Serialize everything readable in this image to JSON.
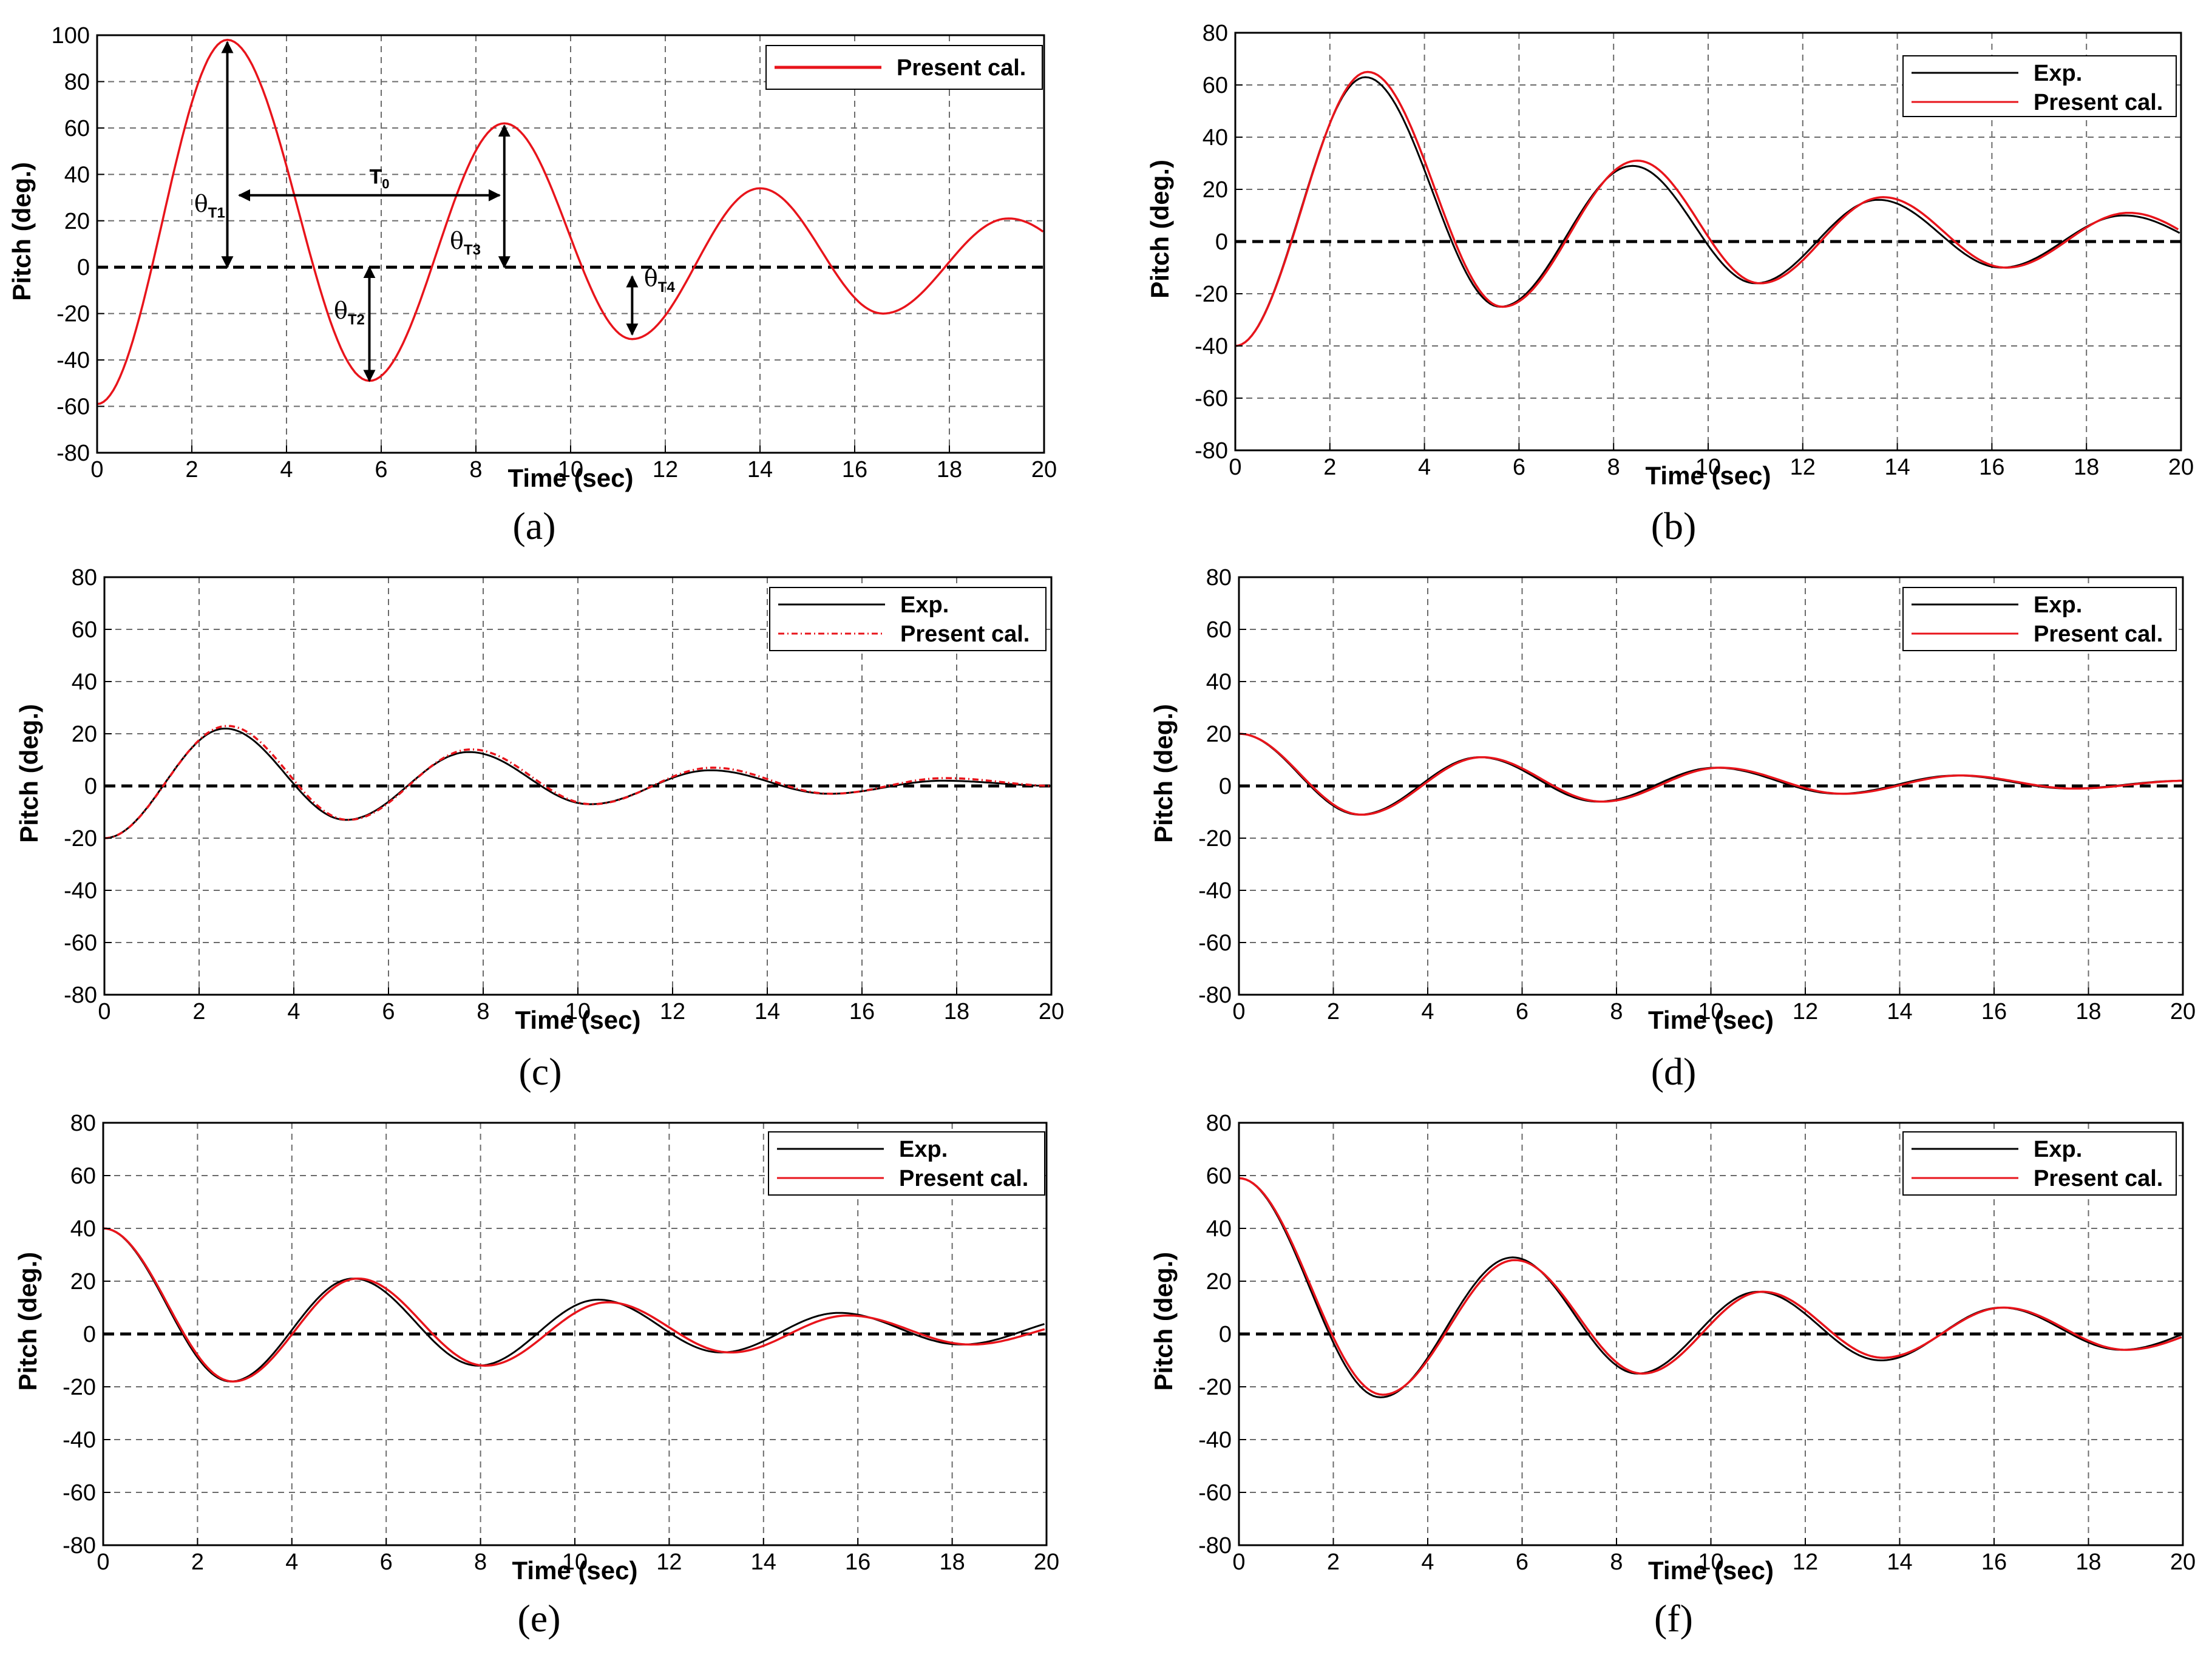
{
  "figure": {
    "description_panels": [
      "a",
      "b",
      "c",
      "d",
      "e",
      "f"
    ]
  },
  "colors": {
    "exp": "#000000",
    "cal": "#e8141b",
    "grid": "#6b6b6b",
    "zero": "#000000"
  },
  "chart_data": [
    {
      "id": "a",
      "label": "(a)",
      "type": "line",
      "xlabel": "Time (sec)",
      "ylabel": "Pitch (deg.)",
      "xlim": [
        0,
        20
      ],
      "ylim": [
        -80,
        100
      ],
      "xticks": [
        0,
        2,
        4,
        6,
        8,
        10,
        12,
        14,
        16,
        18,
        20
      ],
      "yticks": [
        -80,
        -60,
        -40,
        -20,
        0,
        20,
        40,
        60,
        80,
        100
      ],
      "legend": [
        "Present cal."
      ],
      "series": [
        {
          "name": "Present cal.",
          "style": "cal-solid",
          "x0": -59,
          "peaks": [
            [
              2.75,
              98
            ],
            [
              5.75,
              -49
            ],
            [
              8.6,
              62
            ],
            [
              11.3,
              -31
            ],
            [
              14.0,
              34
            ],
            [
              16.6,
              -20
            ],
            [
              19.25,
              21
            ]
          ],
          "x_end": 20,
          "y_end": 15
        }
      ],
      "annotations": {
        "theta_symbol": "θ",
        "theta_T1_sub": "T1",
        "theta_T2_sub": "T2",
        "theta_T3_sub": "T3",
        "theta_T4_sub": "T4",
        "T0": "T",
        "T0_sub": "0"
      }
    },
    {
      "id": "b",
      "label": "(b)",
      "type": "line",
      "xlabel": "Time (sec)",
      "ylabel": "Pitch (deg.)",
      "xlim": [
        0,
        20
      ],
      "ylim": [
        -80,
        80
      ],
      "xticks": [
        0,
        2,
        4,
        6,
        8,
        10,
        12,
        14,
        16,
        18,
        20
      ],
      "yticks": [
        -80,
        -60,
        -40,
        -20,
        0,
        20,
        40,
        60,
        80
      ],
      "legend": [
        "Exp.",
        "Present cal."
      ],
      "series": [
        {
          "name": "Exp.",
          "style": "exp",
          "x0": -40,
          "peaks": [
            [
              2.75,
              63
            ],
            [
              5.6,
              -25
            ],
            [
              8.4,
              29
            ],
            [
              11.0,
              -16
            ],
            [
              13.6,
              16
            ],
            [
              16.2,
              -10
            ],
            [
              18.8,
              10
            ]
          ],
          "x_end": 20,
          "y_end": 3
        },
        {
          "name": "Present cal.",
          "style": "cal-solid",
          "x0": -40,
          "peaks": [
            [
              2.8,
              65
            ],
            [
              5.65,
              -25
            ],
            [
              8.5,
              31
            ],
            [
              11.1,
              -16
            ],
            [
              13.7,
              17
            ],
            [
              16.3,
              -10
            ],
            [
              18.9,
              11
            ]
          ],
          "x_end": 20,
          "y_end": 4
        }
      ]
    },
    {
      "id": "c",
      "label": "(c)",
      "type": "line",
      "xlabel": "Time (sec)",
      "ylabel": "Pitch (deg.)",
      "xlim": [
        0,
        20
      ],
      "ylim": [
        -80,
        80
      ],
      "xticks": [
        0,
        2,
        4,
        6,
        8,
        10,
        12,
        14,
        16,
        18,
        20
      ],
      "yticks": [
        -80,
        -60,
        -40,
        -20,
        0,
        20,
        40,
        60,
        80
      ],
      "legend": [
        "Exp.",
        "Present cal."
      ],
      "series": [
        {
          "name": "Exp.",
          "style": "exp",
          "x0": -20,
          "peaks": [
            [
              2.55,
              22
            ],
            [
              5.1,
              -13
            ],
            [
              7.7,
              13
            ],
            [
              10.25,
              -7
            ],
            [
              12.8,
              6
            ],
            [
              15.3,
              -3
            ],
            [
              17.7,
              2
            ]
          ],
          "x_end": 20,
          "y_end": 0
        },
        {
          "name": "Present cal.",
          "style": "cal-dash",
          "x0": -20,
          "peaks": [
            [
              2.6,
              23
            ],
            [
              5.15,
              -13
            ],
            [
              7.75,
              14
            ],
            [
              10.3,
              -7
            ],
            [
              12.85,
              7
            ],
            [
              15.35,
              -3
            ],
            [
              17.75,
              3
            ]
          ],
          "x_end": 20,
          "y_end": 0
        }
      ]
    },
    {
      "id": "d",
      "label": "(d)",
      "type": "line",
      "xlabel": "Time (sec)",
      "ylabel": "Pitch (deg.)",
      "xlim": [
        0,
        20
      ],
      "ylim": [
        -80,
        80
      ],
      "xticks": [
        0,
        2,
        4,
        6,
        8,
        10,
        12,
        14,
        16,
        18,
        20
      ],
      "yticks": [
        -80,
        -60,
        -40,
        -20,
        0,
        20,
        40,
        60,
        80
      ],
      "legend": [
        "Exp.",
        "Present cal."
      ],
      "series": [
        {
          "name": "Exp.",
          "style": "exp",
          "x0": 20,
          "peaks": [
            [
              2.55,
              -11
            ],
            [
              5.1,
              11
            ],
            [
              7.6,
              -6
            ],
            [
              10.1,
              7
            ],
            [
              12.7,
              -3
            ],
            [
              15.2,
              4
            ],
            [
              17.6,
              -1
            ]
          ],
          "x_end": 20,
          "y_end": 2
        },
        {
          "name": "Present cal.",
          "style": "cal-solid",
          "x0": 20,
          "peaks": [
            [
              2.6,
              -11
            ],
            [
              5.15,
              11
            ],
            [
              7.7,
              -6
            ],
            [
              10.2,
              7
            ],
            [
              12.8,
              -3
            ],
            [
              15.3,
              4
            ],
            [
              17.7,
              -1
            ]
          ],
          "x_end": 20,
          "y_end": 2
        }
      ]
    },
    {
      "id": "e",
      "label": "(e)",
      "type": "line",
      "xlabel": "Time (sec)",
      "ylabel": "Pitch (deg.)",
      "xlim": [
        0,
        20
      ],
      "ylim": [
        -80,
        80
      ],
      "xticks": [
        0,
        2,
        4,
        6,
        8,
        10,
        12,
        14,
        16,
        18,
        20
      ],
      "yticks": [
        -80,
        -60,
        -40,
        -20,
        0,
        20,
        40,
        60,
        80
      ],
      "legend": [
        "Exp.",
        "Present cal."
      ],
      "series": [
        {
          "name": "Exp.",
          "style": "exp",
          "x0": 40,
          "peaks": [
            [
              2.7,
              -18
            ],
            [
              5.3,
              21
            ],
            [
              7.95,
              -12
            ],
            [
              10.5,
              13
            ],
            [
              13.1,
              -7
            ],
            [
              15.6,
              8
            ],
            [
              18.2,
              -4
            ]
          ],
          "x_end": 20,
          "y_end": 4
        },
        {
          "name": "Present cal.",
          "style": "cal-solid",
          "x0": 40,
          "peaks": [
            [
              2.75,
              -18
            ],
            [
              5.4,
              21
            ],
            [
              8.1,
              -12
            ],
            [
              10.7,
              12
            ],
            [
              13.3,
              -7
            ],
            [
              15.8,
              7
            ],
            [
              18.4,
              -4
            ]
          ],
          "x_end": 20,
          "y_end": 2
        }
      ]
    },
    {
      "id": "f",
      "label": "(f)",
      "type": "line",
      "xlabel": "Time (sec)",
      "ylabel": "Pitch (deg.)",
      "xlim": [
        0,
        20
      ],
      "ylim": [
        -80,
        80
      ],
      "xticks": [
        0,
        2,
        4,
        6,
        8,
        10,
        12,
        14,
        16,
        18,
        20
      ],
      "yticks": [
        -80,
        -60,
        -40,
        -20,
        0,
        20,
        40,
        60,
        80
      ],
      "legend": [
        "Exp.",
        "Present cal."
      ],
      "series": [
        {
          "name": "Exp.",
          "style": "exp",
          "x0": 59,
          "peaks": [
            [
              3.0,
              -24
            ],
            [
              5.8,
              29
            ],
            [
              8.45,
              -15
            ],
            [
              11.0,
              16
            ],
            [
              13.6,
              -10
            ],
            [
              16.15,
              10
            ],
            [
              18.7,
              -6
            ]
          ],
          "x_end": 20,
          "y_end": 0
        },
        {
          "name": "Present cal.",
          "style": "cal-solid",
          "x0": 59,
          "peaks": [
            [
              3.05,
              -23
            ],
            [
              5.85,
              28
            ],
            [
              8.55,
              -15
            ],
            [
              11.1,
              16
            ],
            [
              13.65,
              -9
            ],
            [
              16.2,
              10
            ],
            [
              18.8,
              -6
            ]
          ],
          "x_end": 20,
          "y_end": -1
        }
      ]
    }
  ]
}
